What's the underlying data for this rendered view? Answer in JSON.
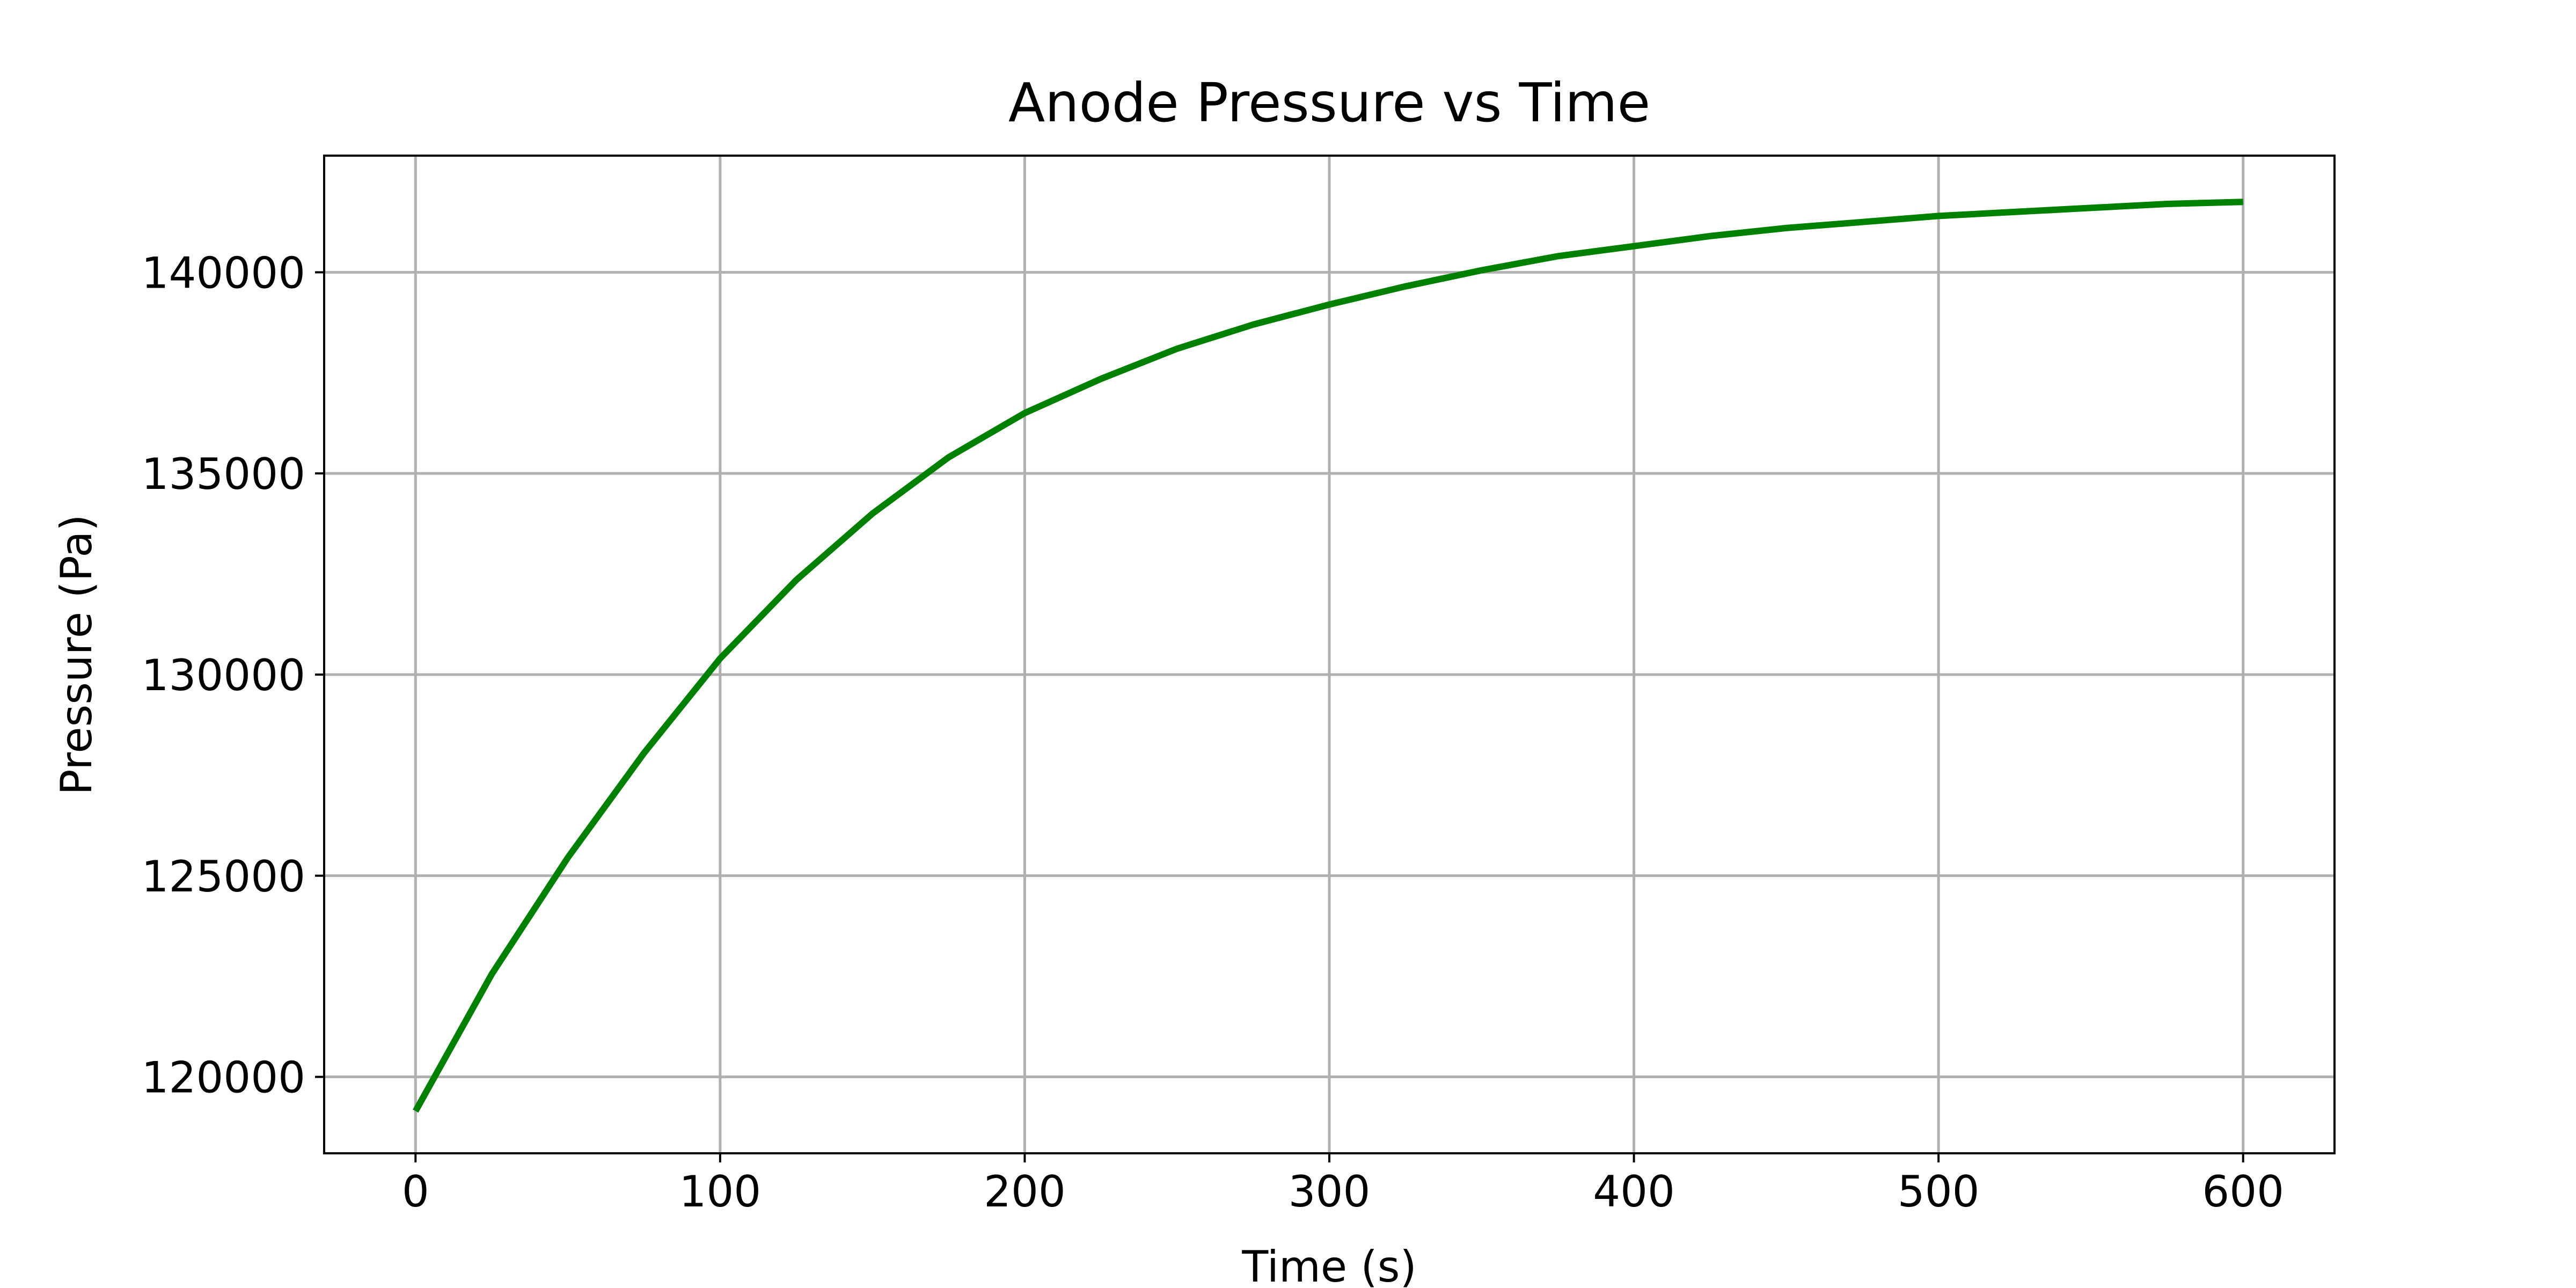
{
  "chart_data": {
    "type": "line",
    "title": "Anode Pressure vs Time",
    "xlabel": "Time (s)",
    "ylabel": "Pressure (Pa)",
    "xlim": [
      -30,
      630
    ],
    "ylim": [
      118100,
      142900
    ],
    "xticks": [
      0,
      100,
      200,
      300,
      400,
      500,
      600
    ],
    "yticks": [
      120000,
      125000,
      130000,
      135000,
      140000
    ],
    "grid": true,
    "line_color": "#008000",
    "grid_color": "#b0b0b0",
    "series": [
      {
        "x": [
          0,
          25,
          50,
          75,
          100,
          125,
          150,
          175,
          200,
          225,
          250,
          275,
          300,
          325,
          350,
          375,
          400,
          425,
          450,
          475,
          500,
          525,
          550,
          575,
          600
        ],
        "y": [
          119150,
          122550,
          125450,
          128050,
          130400,
          132350,
          134000,
          135400,
          136500,
          137350,
          138100,
          138700,
          139200,
          139650,
          140050,
          140400,
          140650,
          140900,
          141100,
          141250,
          141400,
          141500,
          141600,
          141700,
          141750
        ]
      }
    ]
  }
}
